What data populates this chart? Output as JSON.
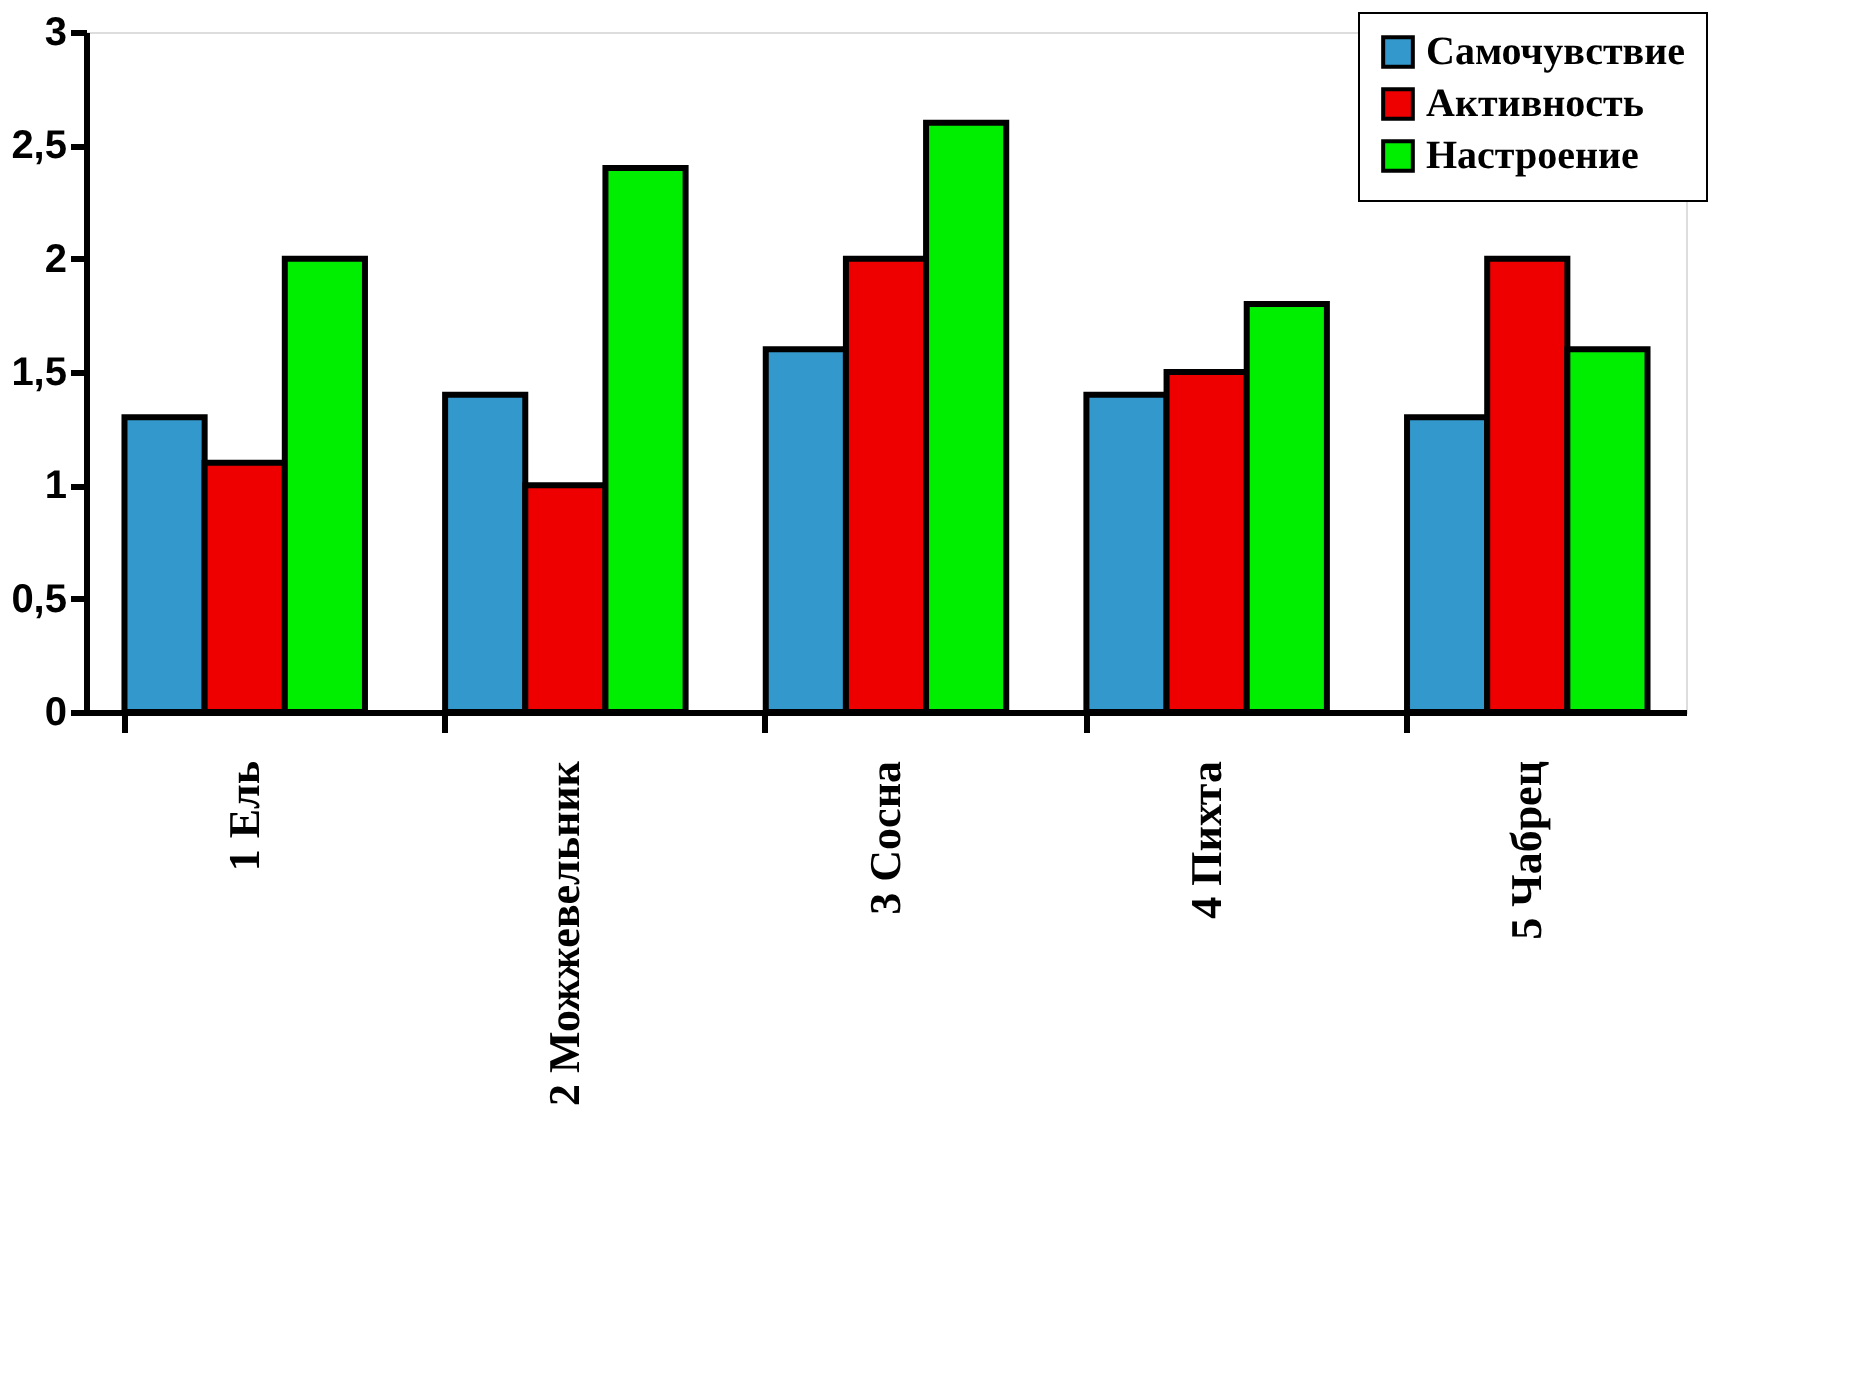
{
  "chart_data": {
    "type": "bar",
    "categories": [
      "1 Ель",
      "2 Можжевельник",
      "3 Сосна",
      "4 Пихта",
      "5 Чабрец"
    ],
    "series": [
      {
        "name": "Самочувствие",
        "color": "#3399cc",
        "values": [
          1.3,
          1.4,
          1.6,
          1.4,
          1.3
        ]
      },
      {
        "name": "Активность",
        "color": "#ee0000",
        "values": [
          1.1,
          1.0,
          2.0,
          1.5,
          2.0
        ]
      },
      {
        "name": "Настроение",
        "color": "#00ee00",
        "values": [
          2.0,
          2.4,
          2.6,
          1.8,
          1.6
        ]
      }
    ],
    "ylim": [
      0,
      3
    ],
    "yticks": [
      0,
      {
        "value": 0.5,
        "label": "0,5"
      },
      1,
      {
        "value": 1.5,
        "label": "1,5"
      },
      2,
      {
        "value": 2.5,
        "label": "2,5"
      },
      3
    ],
    "grid": false,
    "legend": "top right"
  }
}
